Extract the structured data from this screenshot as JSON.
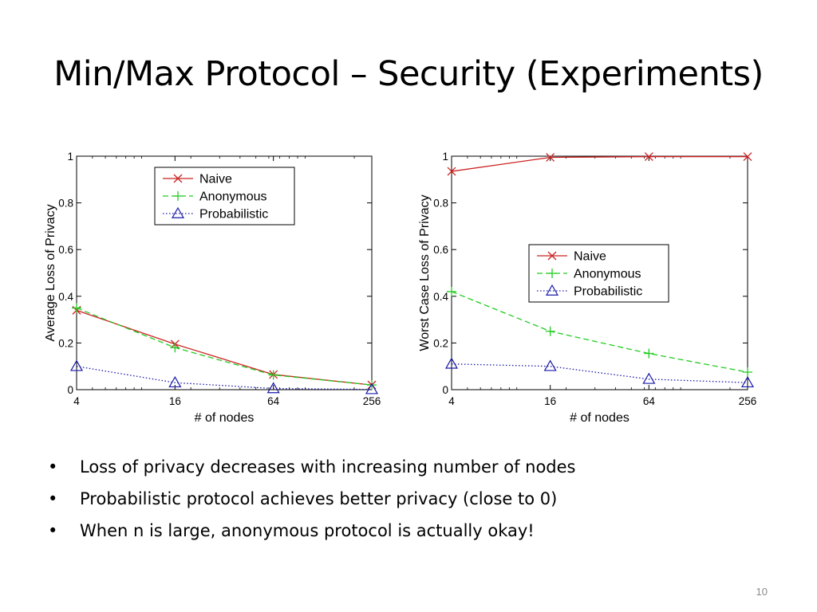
{
  "slide": {
    "title": "Min/Max Protocol – Security (Experiments)",
    "bullets": [
      "Loss of privacy decreases with increasing number of nodes",
      "Probabilistic protocol achieves better privacy (close to 0)",
      "When n is large, anonymous protocol is actually okay!"
    ],
    "bullet_glyph": "•",
    "page_number": "10"
  },
  "chart_data": [
    {
      "type": "line",
      "title": "",
      "xlabel": "# of nodes",
      "ylabel": "Average Loss of Privacy",
      "x_scale": "log2",
      "x": [
        4,
        16,
        64,
        256
      ],
      "xticks": [
        "4",
        "16",
        "64",
        "256"
      ],
      "xlim": [
        4,
        256
      ],
      "ylim": [
        0,
        1
      ],
      "yticks": [
        "0",
        "0.2",
        "0.4",
        "0.6",
        "0.8",
        "1"
      ],
      "grid": false,
      "legend": "top-center",
      "series": [
        {
          "name": "Naive",
          "values": [
            0.34,
            0.195,
            0.065,
            0.02
          ],
          "color": "#cc2222",
          "marker": "x",
          "dash": "solid"
        },
        {
          "name": "Anonymous",
          "values": [
            0.35,
            0.18,
            0.063,
            0.02
          ],
          "color": "#22cc22",
          "marker": "+",
          "dash": "dashed"
        },
        {
          "name": "Probabilistic",
          "values": [
            0.1,
            0.03,
            0.005,
            0.001
          ],
          "color": "#1a1aaa",
          "marker": "triangle",
          "dash": "dotted"
        }
      ]
    },
    {
      "type": "line",
      "title": "",
      "xlabel": "# of nodes",
      "ylabel": "Worst Case Loss of Privacy",
      "x_scale": "log2",
      "x": [
        4,
        16,
        64,
        256
      ],
      "xticks": [
        "4",
        "16",
        "64",
        "256"
      ],
      "xlim": [
        4,
        256
      ],
      "ylim": [
        0,
        1
      ],
      "yticks": [
        "0",
        "0.2",
        "0.4",
        "0.6",
        "0.8",
        "1"
      ],
      "grid": false,
      "legend": "center-right",
      "series": [
        {
          "name": "Naive",
          "values": [
            0.935,
            0.995,
            0.998,
            0.998
          ],
          "color": "#cc2222",
          "marker": "x",
          "dash": "solid"
        },
        {
          "name": "Anonymous",
          "values": [
            0.42,
            0.25,
            0.155,
            0.075
          ],
          "color": "#22cc22",
          "marker": "+",
          "dash": "dashed"
        },
        {
          "name": "Probabilistic",
          "values": [
            0.11,
            0.1,
            0.045,
            0.03
          ],
          "color": "#1a1aaa",
          "marker": "triangle",
          "dash": "dotted"
        }
      ]
    }
  ]
}
